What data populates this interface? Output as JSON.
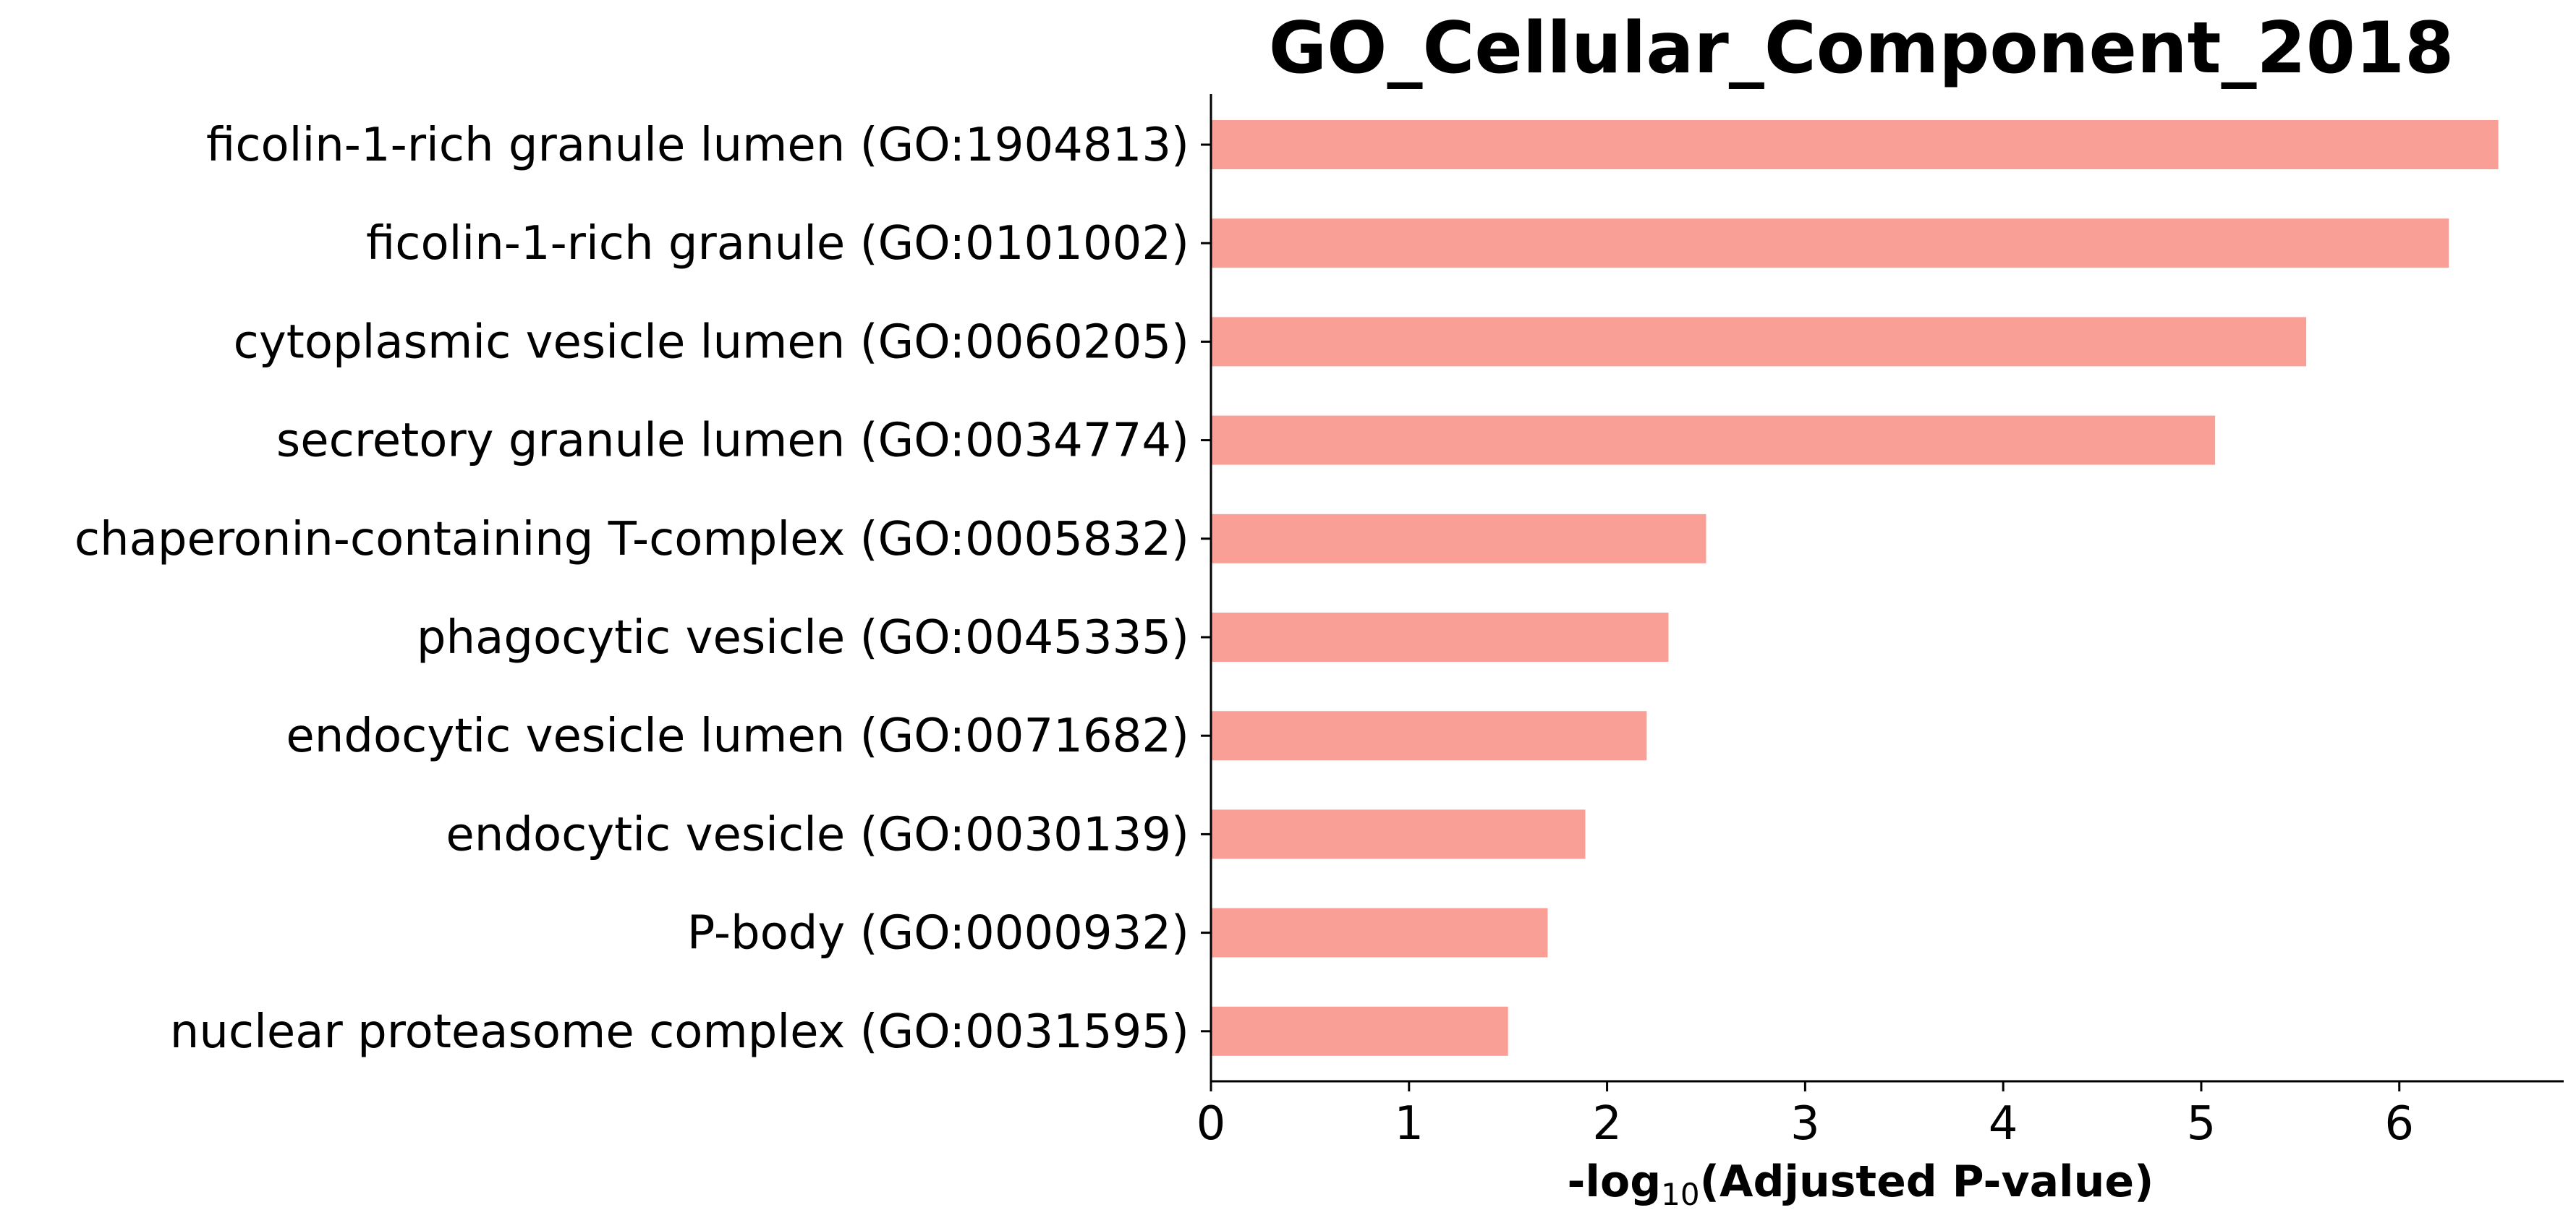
{
  "chart_data": {
    "type": "bar",
    "orientation": "horizontal",
    "title": "GO_Cellular_Component_2018",
    "xlabel": {
      "prefix": "-log",
      "subscript": "10",
      "suffix": "(Adjusted P-value)"
    },
    "ylabel": "",
    "categories": [
      "ficolin-1-rich granule lumen (GO:1904813)",
      "ficolin-1-rich granule (GO:0101002)",
      "cytoplasmic vesicle lumen (GO:0060205)",
      "secretory granule lumen (GO:0034774)",
      "chaperonin-containing T-complex (GO:0005832)",
      "phagocytic vesicle (GO:0045335)",
      "endocytic vesicle lumen (GO:0071682)",
      "endocytic vesicle (GO:0030139)",
      "P-body (GO:0000932)",
      "nuclear proteasome complex (GO:0031595)"
    ],
    "values": [
      6.5,
      6.25,
      5.53,
      5.07,
      2.5,
      2.31,
      2.2,
      1.89,
      1.7,
      1.5
    ],
    "xlim": [
      0,
      6.83
    ],
    "xticks": [
      "0",
      "1",
      "2",
      "3",
      "4",
      "5",
      "6"
    ],
    "bar_color": "#fa9f96",
    "axis_color": "#000000",
    "grid": false,
    "legend": "none",
    "spines": [
      "left",
      "bottom"
    ]
  }
}
